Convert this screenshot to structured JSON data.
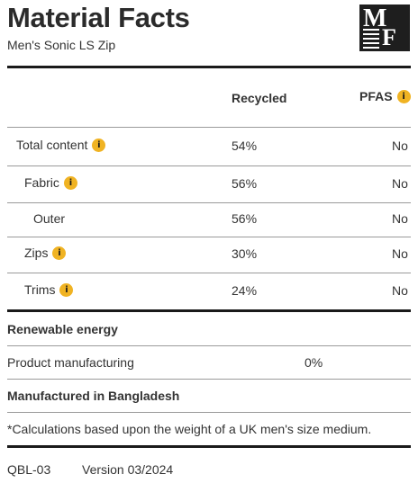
{
  "header": {
    "title": "Material Facts",
    "subtitle": "Men's Sonic LS Zip"
  },
  "logo": {
    "letter_top": "M",
    "letter_bottom": "F"
  },
  "columns": {
    "recycled": "Recycled",
    "pfas": "PFAS"
  },
  "rows": [
    {
      "label": "Total content",
      "recycled": "54%",
      "pfas": "No",
      "info": true
    },
    {
      "label": "Fabric",
      "recycled": "56%",
      "pfas": "No",
      "info": true
    },
    {
      "label": "Outer",
      "recycled": "56%",
      "pfas": "No",
      "info": false
    },
    {
      "label": "Zips",
      "recycled": "30%",
      "pfas": "No",
      "info": true
    },
    {
      "label": "Trims",
      "recycled": "24%",
      "pfas": "No",
      "info": true
    }
  ],
  "info_icon_glyph": "i",
  "renewable": {
    "heading": "Renewable energy",
    "label": "Product manufacturing",
    "value": "0%"
  },
  "origin": "Manufactured in Bangladesh",
  "note": "*Calculations based upon the weight of a UK men's size medium.",
  "footer": {
    "code": "QBL-03",
    "version": "Version 03/2024"
  },
  "colors": {
    "accent": "#f0b323",
    "rule": "#1a1a1a"
  }
}
